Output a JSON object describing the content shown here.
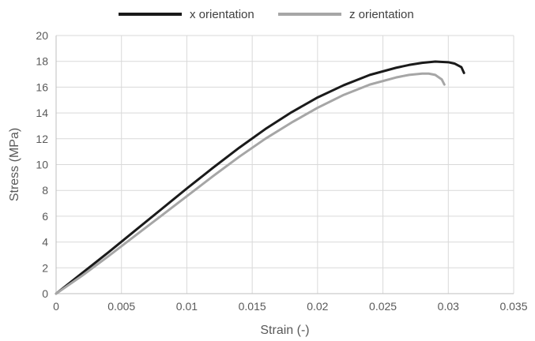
{
  "chart_data": {
    "type": "line",
    "title": "",
    "xlabel": "Strain (-)",
    "ylabel": "Stress (MPa)",
    "xlim": [
      0,
      0.035
    ],
    "ylim": [
      0,
      20
    ],
    "x_ticks": [
      0,
      0.005,
      0.01,
      0.015,
      0.02,
      0.025,
      0.03,
      0.035
    ],
    "x_tick_labels": [
      "0",
      "0.005",
      "0.01",
      "0.015",
      "0.02",
      "0.025",
      "0.03",
      "0.035"
    ],
    "y_ticks": [
      0,
      2,
      4,
      6,
      8,
      10,
      12,
      14,
      16,
      18,
      20
    ],
    "y_tick_labels": [
      "0",
      "2",
      "4",
      "6",
      "8",
      "10",
      "12",
      "14",
      "16",
      "18",
      "20"
    ],
    "grid": true,
    "legend_position": "top",
    "series": [
      {
        "name": "x orientation",
        "color": "#1a1a1a",
        "x": [
          0,
          0.002,
          0.004,
          0.006,
          0.008,
          0.01,
          0.012,
          0.014,
          0.016,
          0.018,
          0.02,
          0.022,
          0.024,
          0.026,
          0.027,
          0.028,
          0.029,
          0.03,
          0.0305,
          0.031,
          0.0312
        ],
        "y": [
          0,
          1.6,
          3.2,
          4.85,
          6.5,
          8.15,
          9.75,
          11.3,
          12.75,
          14.05,
          15.2,
          16.15,
          16.95,
          17.5,
          17.72,
          17.88,
          17.98,
          17.93,
          17.82,
          17.55,
          17.1
        ]
      },
      {
        "name": "z orientation",
        "color": "#a6a6a6",
        "x": [
          0,
          0.002,
          0.004,
          0.006,
          0.008,
          0.01,
          0.012,
          0.014,
          0.016,
          0.018,
          0.02,
          0.022,
          0.024,
          0.026,
          0.027,
          0.028,
          0.0285,
          0.029,
          0.0295,
          0.0297
        ],
        "y": [
          0,
          1.4,
          2.9,
          4.45,
          6.0,
          7.55,
          9.1,
          10.6,
          12.0,
          13.25,
          14.4,
          15.4,
          16.2,
          16.75,
          16.95,
          17.05,
          17.05,
          16.95,
          16.6,
          16.2
        ]
      }
    ]
  }
}
